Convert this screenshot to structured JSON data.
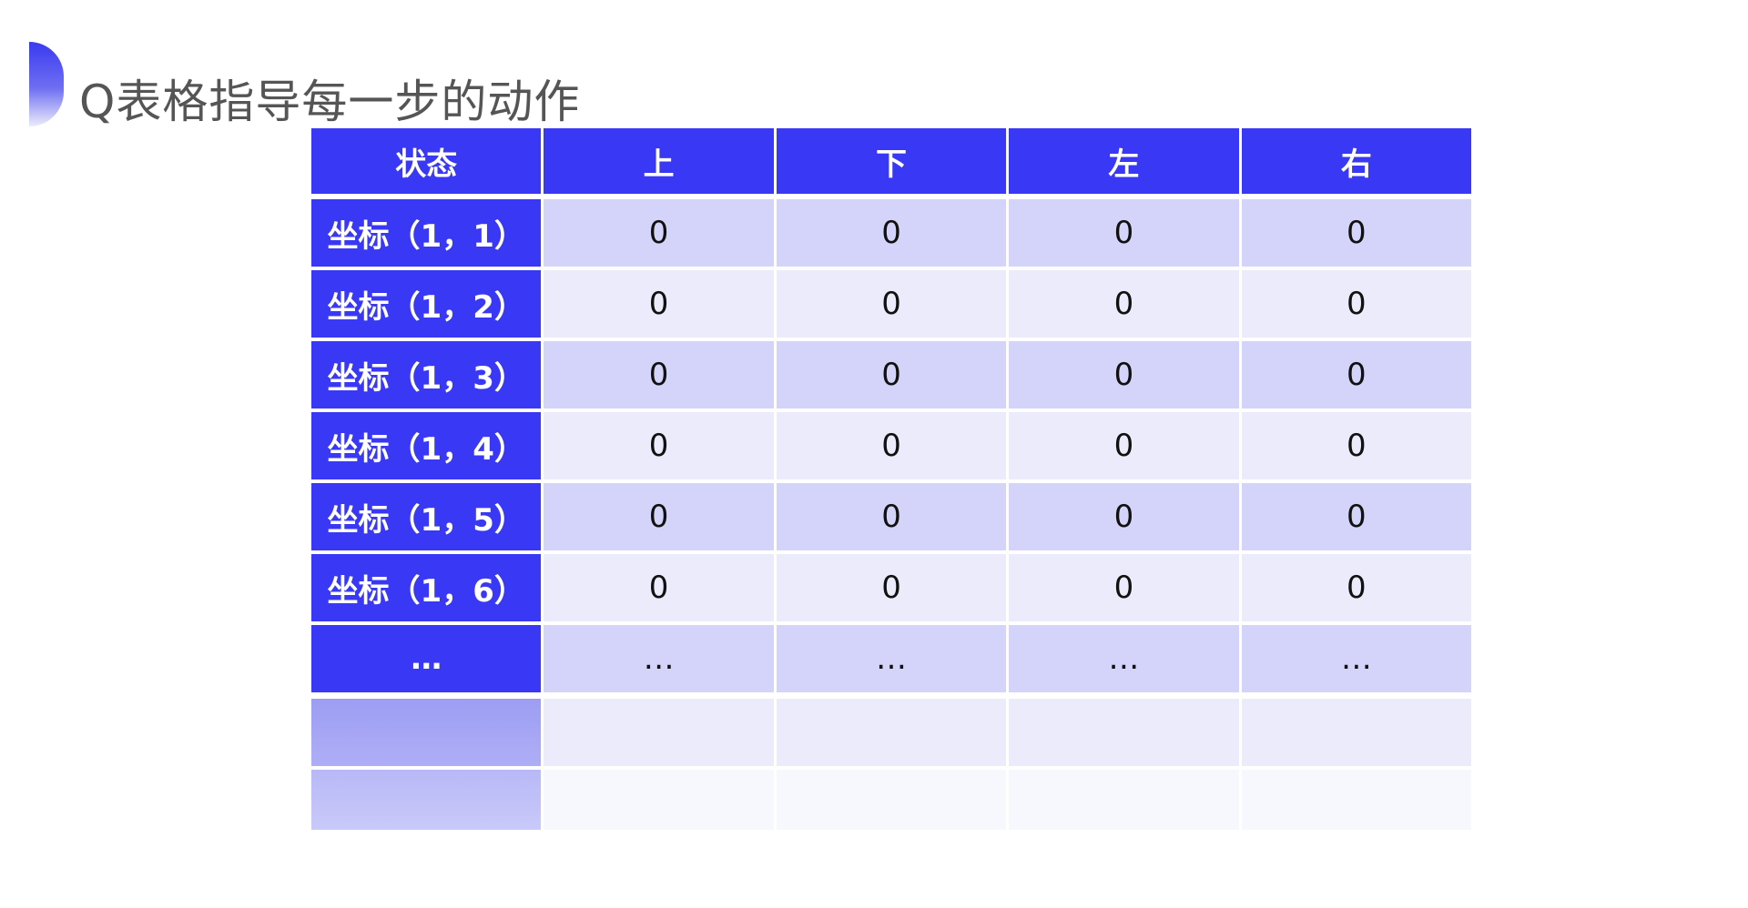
{
  "title": "Q表格指导每一步的动作",
  "colors": {
    "header": "#3838f5",
    "row_dark": "#d4d4fa",
    "row_light": "#ebebfc"
  },
  "table": {
    "headers": [
      "状态",
      "上",
      "下",
      "左",
      "右"
    ],
    "rows": [
      [
        "坐标（1，1）",
        "0",
        "0",
        "0",
        "0"
      ],
      [
        "坐标（1，2）",
        "0",
        "0",
        "0",
        "0"
      ],
      [
        "坐标（1，3）",
        "0",
        "0",
        "0",
        "0"
      ],
      [
        "坐标（1，4）",
        "0",
        "0",
        "0",
        "0"
      ],
      [
        "坐标（1，5）",
        "0",
        "0",
        "0",
        "0"
      ],
      [
        "坐标（1，6）",
        "0",
        "0",
        "0",
        "0"
      ],
      [
        "…",
        "…",
        "…",
        "…",
        "…"
      ]
    ]
  }
}
